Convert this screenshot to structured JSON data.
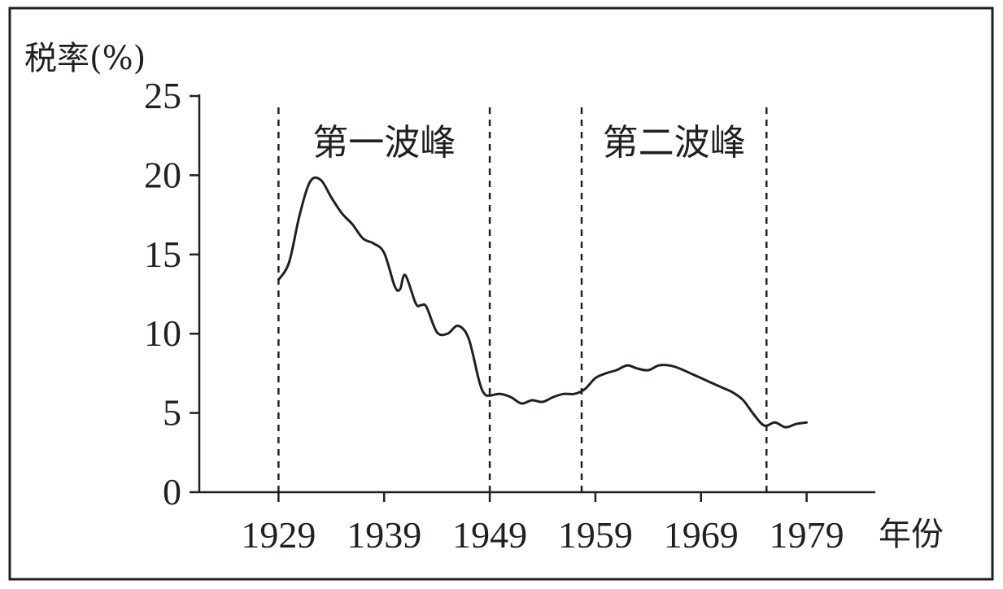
{
  "chart_data": {
    "type": "line",
    "ylabel": "税率(%)",
    "xlabel": "年份",
    "xlim": [
      1921.5,
      1985.5
    ],
    "ylim": [
      0,
      25
    ],
    "x_ticks": [
      1929,
      1939,
      1949,
      1959,
      1969,
      1979
    ],
    "y_ticks": [
      0,
      5,
      10,
      15,
      20,
      25
    ],
    "grid": false,
    "dividers": [
      1929,
      1949,
      1957.7,
      1975.2
    ],
    "annotations": [
      {
        "text": "第一波峰",
        "x_start": 1929,
        "x_end": 1949
      },
      {
        "text": "第二波峰",
        "x_start": 1957.7,
        "x_end": 1975.2
      }
    ],
    "series": [
      {
        "x": [
          1929,
          1930,
          1931,
          1932,
          1933,
          1934,
          1935,
          1936,
          1937,
          1938,
          1939,
          1940,
          1940.5,
          1941,
          1942,
          1942.5,
          1943,
          1944,
          1945,
          1946,
          1947,
          1948,
          1948.5,
          1949,
          1950,
          1951,
          1952,
          1953,
          1954,
          1955,
          1956,
          1957,
          1958,
          1959,
          1960,
          1961,
          1962,
          1963,
          1964,
          1965,
          1966,
          1967,
          1968,
          1969,
          1970,
          1971,
          1972,
          1973,
          1974,
          1975,
          1976,
          1977,
          1978,
          1979
        ],
        "values": [
          13.4,
          14.5,
          17.5,
          19.6,
          19.7,
          18.6,
          17.6,
          16.9,
          16.0,
          15.7,
          15.1,
          13.0,
          12.8,
          13.7,
          11.9,
          11.8,
          11.7,
          10.1,
          10.0,
          10.5,
          9.7,
          7.0,
          6.2,
          6.1,
          6.2,
          6.0,
          5.6,
          5.8,
          5.7,
          6.0,
          6.2,
          6.2,
          6.5,
          7.2,
          7.5,
          7.7,
          8.0,
          7.8,
          7.7,
          8.0,
          8.0,
          7.8,
          7.5,
          7.2,
          6.9,
          6.6,
          6.3,
          5.8,
          4.9,
          4.2,
          4.4,
          4.1,
          4.3,
          4.4
        ]
      }
    ]
  }
}
